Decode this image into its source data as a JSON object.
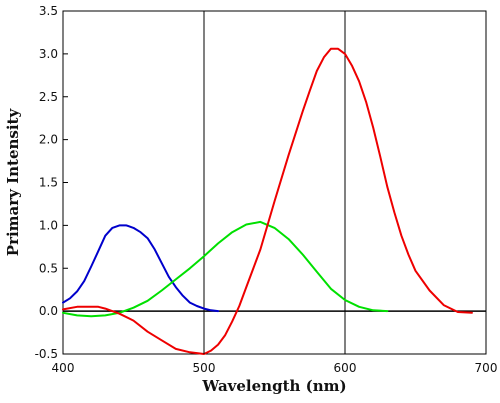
{
  "chart_data": {
    "type": "line",
    "title": "",
    "xlabel": "Wavelength (nm)",
    "ylabel": "Primary Intensity",
    "xlim": [
      400,
      700
    ],
    "ylim": [
      -0.5,
      3.5
    ],
    "x_ticks": [
      400,
      500,
      600,
      700
    ],
    "x_tick_labels": [
      "400",
      "500",
      "600",
      "700"
    ],
    "y_ticks": [
      -0.5,
      0.0,
      0.5,
      1.0,
      1.5,
      2.0,
      2.5,
      3.0,
      3.5
    ],
    "y_tick_labels": [
      "-0.5",
      "0.0",
      "0.5",
      "1.0",
      "1.5",
      "2.0",
      "2.5",
      "3.0",
      "3.5"
    ],
    "grid": {
      "x": [
        500,
        600
      ],
      "y": [
        0
      ]
    },
    "legend": "none",
    "series": [
      {
        "color": "#0000cc",
        "x": [
          400,
          405,
          410,
          415,
          420,
          425,
          430,
          435,
          440,
          445,
          450,
          455,
          460,
          465,
          470,
          475,
          480,
          485,
          490,
          495,
          500,
          505,
          510
        ],
        "y": [
          0.1,
          0.15,
          0.23,
          0.35,
          0.52,
          0.7,
          0.88,
          0.97,
          1.0,
          1.0,
          0.97,
          0.92,
          0.85,
          0.72,
          0.56,
          0.4,
          0.28,
          0.18,
          0.1,
          0.06,
          0.03,
          0.01,
          0.0
        ]
      },
      {
        "color": "#00e000",
        "x": [
          400,
          410,
          420,
          430,
          440,
          450,
          460,
          470,
          480,
          490,
          500,
          510,
          520,
          530,
          540,
          550,
          560,
          570,
          580,
          590,
          600,
          610,
          620,
          630
        ],
        "y": [
          -0.02,
          -0.05,
          -0.06,
          -0.05,
          -0.02,
          0.04,
          0.12,
          0.24,
          0.37,
          0.5,
          0.64,
          0.79,
          0.92,
          1.01,
          1.04,
          0.97,
          0.84,
          0.66,
          0.46,
          0.26,
          0.13,
          0.05,
          0.01,
          0.0
        ]
      },
      {
        "color": "#ee0000",
        "x": [
          400,
          410,
          420,
          425,
          430,
          440,
          450,
          460,
          470,
          480,
          490,
          500,
          505,
          510,
          515,
          520,
          525,
          530,
          540,
          550,
          560,
          570,
          575,
          580,
          585,
          590,
          595,
          600,
          605,
          610,
          615,
          620,
          625,
          630,
          635,
          640,
          645,
          650,
          660,
          670,
          680,
          690
        ],
        "y": [
          0.02,
          0.05,
          0.05,
          0.05,
          0.03,
          -0.03,
          -0.11,
          -0.24,
          -0.34,
          -0.44,
          -0.48,
          -0.5,
          -0.46,
          -0.39,
          -0.28,
          -0.12,
          0.06,
          0.28,
          0.72,
          1.28,
          1.82,
          2.33,
          2.57,
          2.8,
          2.96,
          3.06,
          3.06,
          3.0,
          2.86,
          2.68,
          2.44,
          2.14,
          1.8,
          1.45,
          1.15,
          0.88,
          0.66,
          0.47,
          0.24,
          0.07,
          -0.01,
          -0.02
        ]
      }
    ]
  }
}
